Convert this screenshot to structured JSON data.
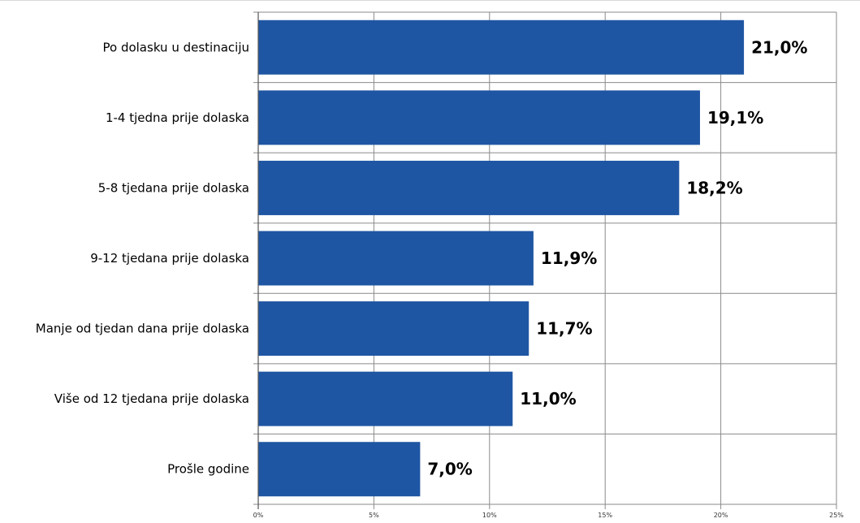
{
  "chart_data": {
    "type": "bar",
    "orientation": "horizontal",
    "title": "",
    "xlabel": "",
    "ylabel": "",
    "xlim": [
      0,
      25
    ],
    "grid": true,
    "legend": "none",
    "bar_color": "#1f56a3",
    "categories": [
      "Po dolasku u destinaciju",
      "1-4 tjedna prije dolaska",
      "5-8 tjedana prije dolaska",
      "9-12 tjedana prije dolaska",
      "Manje od tjedan dana prije dolaska",
      "Više od 12 tjedana prije dolaska",
      "Prošle godine"
    ],
    "values": [
      21.0,
      19.1,
      18.2,
      11.9,
      11.7,
      11.0,
      7.0
    ],
    "data_labels": [
      "21,0%",
      "19,1%",
      "18,2%",
      "11,9%",
      "11,7%",
      "11,0%",
      "7,0%"
    ],
    "x_ticks": [
      0,
      5,
      10,
      15,
      20,
      25
    ],
    "x_tick_labels": [
      "0%",
      "5%",
      "10%",
      "15%",
      "20%",
      "25%"
    ]
  }
}
